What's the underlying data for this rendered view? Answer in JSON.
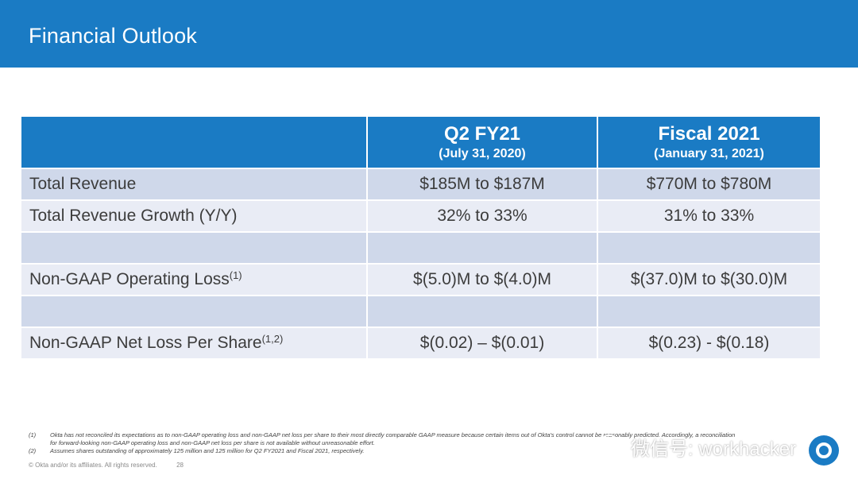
{
  "header": {
    "title": "Financial Outlook"
  },
  "table": {
    "columns": [
      {
        "title": "",
        "subtitle": ""
      },
      {
        "title": "Q2 FY21",
        "subtitle": "(July 31, 2020)"
      },
      {
        "title": "Fiscal 2021",
        "subtitle": "(January 31, 2021)"
      }
    ],
    "rows": [
      {
        "label": "Total Revenue",
        "sup": "",
        "q2": "$185M to $187M",
        "fy": "$770M to $780M"
      },
      {
        "label": "Total Revenue Growth (Y/Y)",
        "sup": "",
        "q2": "32% to 33%",
        "fy": "31% to 33%"
      },
      {
        "label": "",
        "sup": "",
        "q2": "",
        "fy": ""
      },
      {
        "label": "Non-GAAP Operating Loss",
        "sup": "(1)",
        "q2": "$(5.0)M to $(4.0)M",
        "fy": "$(37.0)M to $(30.0)M"
      },
      {
        "label": "",
        "sup": "",
        "q2": "",
        "fy": ""
      },
      {
        "label": "Non-GAAP Net Loss Per Share",
        "sup": "(1,2)",
        "q2": "$(0.02) – $(0.01)",
        "fy": "$(0.23) - $(0.18)"
      }
    ]
  },
  "footnotes": [
    {
      "num": "(1)",
      "text": "Okta has not reconciled its expectations as to non-GAAP operating loss and non-GAAP net loss per share to their most directly comparable GAAP measure because certain items out of Okta's control cannot be reasonably predicted. Accordingly, a reconciliation for forward-looking non-GAAP operating loss and non-GAAP net loss per share is not available without unreasonable effort."
    },
    {
      "num": "(2)",
      "text": "Assumes shares outstanding of approximately 125 million and 125 million for Q2 FY2021 and Fiscal 2021, respectively."
    }
  ],
  "footer": {
    "copyright": "© Okta and/or its affiliates. All rights reserved.",
    "page_number": "28"
  },
  "watermark": {
    "text": "微信号: workhacker",
    "icon": "wechat-icon"
  },
  "badge": {
    "icon": "okta-logo-icon"
  },
  "colors": {
    "brand_blue": "#1a7bc4",
    "row_dark": "#cfd8ea",
    "row_light": "#e9ecf5",
    "text": "#3c3c3c"
  }
}
